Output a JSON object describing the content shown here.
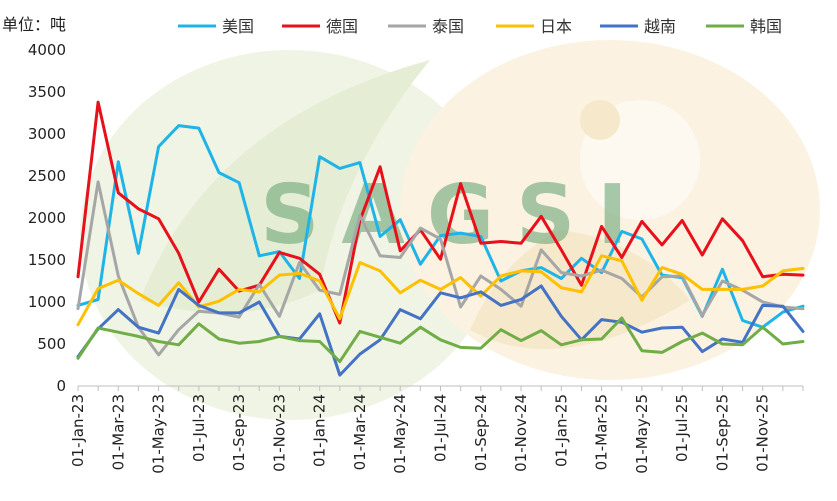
{
  "chart_data": {
    "type": "line",
    "ylabel": "单位：吨",
    "ylim": [
      0,
      4000
    ],
    "yticks": [
      0,
      500,
      1000,
      1500,
      2000,
      2500,
      3000,
      3500,
      4000
    ],
    "x_tick_labels": [
      "01-Jan-23",
      "01-Mar-23",
      "01-May-23",
      "01-Jul-23",
      "01-Sep-23",
      "01-Nov-23",
      "01-Jan-24",
      "01-Mar-24",
      "01-May-24",
      "01-Jul-24",
      "01-Sep-24",
      "01-Nov-24",
      "01-Jan-25",
      "01-Mar-25",
      "01-May-25",
      "01-Jul-25",
      "01-Sep-25",
      "01-Nov-25"
    ],
    "legend_position": "top",
    "watermark": "SAGSI",
    "series": [
      {
        "name": "美国",
        "color": "#1FB4E8",
        "values": [
          960,
          1030,
          2670,
          1580,
          2850,
          3100,
          3070,
          2540,
          2420,
          1550,
          1600,
          1280,
          2730,
          2590,
          2660,
          1780,
          1980,
          1450,
          1790,
          1820,
          1780,
          1250,
          1370,
          1410,
          1280,
          1520,
          1350,
          1840,
          1750,
          1320,
          1290,
          830,
          1390,
          780,
          700,
          880,
          950
        ]
      },
      {
        "name": "德国",
        "color": "#E8101A",
        "values": [
          1300,
          3380,
          2300,
          2110,
          1990,
          1580,
          1000,
          1390,
          1130,
          1200,
          1590,
          1520,
          1330,
          750,
          1970,
          2610,
          1610,
          1860,
          1510,
          2410,
          1700,
          1720,
          1700,
          2020,
          1620,
          1200,
          1900,
          1530,
          1960,
          1680,
          1970,
          1560,
          1990,
          1730,
          1300,
          1330,
          1320
        ]
      },
      {
        "name": "泰国",
        "color": "#A6A6A6",
        "values": [
          920,
          2430,
          1310,
          700,
          370,
          670,
          890,
          870,
          820,
          1210,
          830,
          1470,
          1140,
          1090,
          2030,
          1550,
          1530,
          1880,
          1750,
          940,
          1310,
          1150,
          950,
          1620,
          1350,
          1310,
          1380,
          1280,
          1060,
          1300,
          1310,
          840,
          1250,
          1140,
          1000,
          940,
          920
        ]
      },
      {
        "name": "日本",
        "color": "#FFC000",
        "values": [
          730,
          1160,
          1260,
          1100,
          960,
          1230,
          940,
          1010,
          1150,
          1120,
          1320,
          1340,
          1250,
          800,
          1470,
          1370,
          1110,
          1260,
          1150,
          1290,
          1070,
          1310,
          1370,
          1360,
          1170,
          1120,
          1550,
          1490,
          1020,
          1410,
          1330,
          1150,
          1150,
          1150,
          1190,
          1370,
          1400
        ]
      },
      {
        "name": "越南",
        "color": "#4472C4",
        "values": [
          350,
          680,
          910,
          700,
          630,
          1150,
          960,
          870,
          870,
          1000,
          590,
          560,
          860,
          130,
          380,
          550,
          910,
          800,
          1110,
          1050,
          1120,
          960,
          1030,
          1190,
          830,
          550,
          790,
          760,
          640,
          690,
          700,
          410,
          560,
          520,
          960,
          950,
          650
        ]
      },
      {
        "name": "韩国",
        "color": "#70AD47",
        "values": [
          330,
          690,
          640,
          590,
          530,
          490,
          740,
          560,
          510,
          530,
          590,
          540,
          530,
          290,
          650,
          580,
          510,
          700,
          550,
          460,
          450,
          670,
          540,
          660,
          490,
          550,
          560,
          810,
          420,
          400,
          530,
          630,
          500,
          490,
          700,
          500,
          530
        ]
      }
    ]
  }
}
